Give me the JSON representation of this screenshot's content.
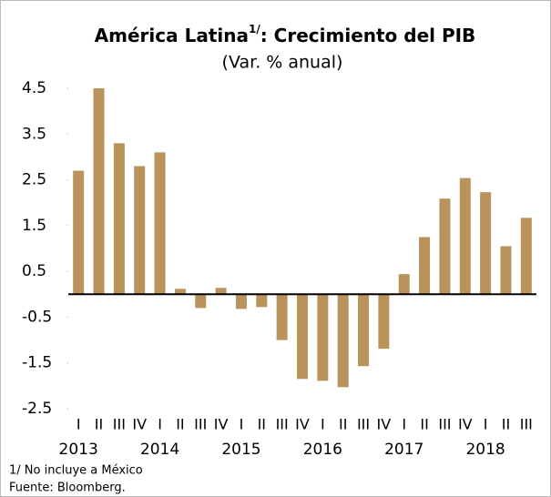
{
  "chart_data": {
    "type": "bar",
    "title": "América Latina",
    "title_superscript": "1/",
    "title_rest": ": Crecimiento del PIB",
    "subtitle": "(Var. % anual)",
    "categories": [
      "I",
      "II",
      "III",
      "IV",
      "I",
      "II",
      "III",
      "IV",
      "I",
      "II",
      "III",
      "IV",
      "I",
      "II",
      "III",
      "IV",
      "I",
      "II",
      "III",
      "IV",
      "I",
      "II",
      "III"
    ],
    "years": [
      "2013",
      null,
      null,
      null,
      "2014",
      null,
      null,
      null,
      "2015",
      null,
      null,
      null,
      "2016",
      null,
      null,
      null,
      "2017",
      null,
      null,
      null,
      "2018",
      null,
      null
    ],
    "values": [
      2.7,
      4.5,
      3.3,
      2.8,
      3.1,
      0.12,
      -0.3,
      0.14,
      -0.32,
      -0.28,
      -1.0,
      -1.85,
      -1.89,
      -2.03,
      -1.57,
      -1.19,
      0.44,
      1.25,
      2.09,
      2.54,
      2.23,
      1.05,
      1.67
    ],
    "color": "#b9935b",
    "ylim": [
      -2.5,
      4.5
    ],
    "yticks": [
      -2.5,
      -1.5,
      -0.5,
      0.5,
      1.5,
      2.5,
      3.5,
      4.5
    ],
    "grid": false,
    "footnotes": [
      "1/ No incluye a México",
      "Fuente: Bloomberg."
    ]
  }
}
